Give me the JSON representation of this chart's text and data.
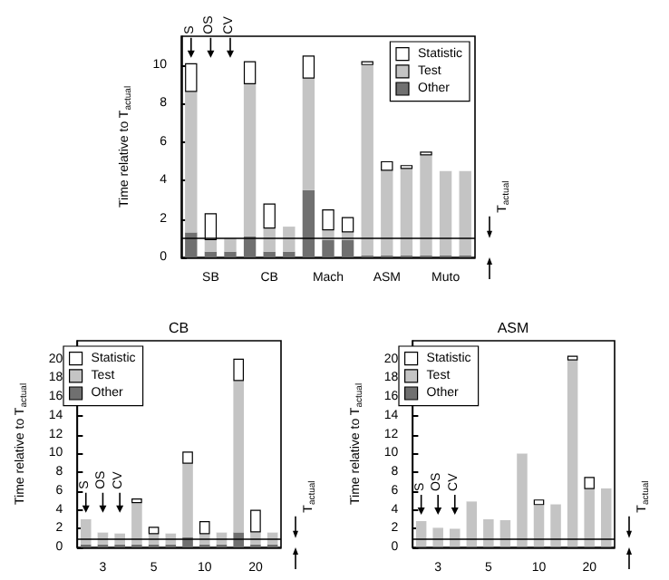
{
  "chart_data": [
    {
      "type": "bar",
      "stacked": true,
      "ylabel": "Time relative to T$_{actual}$",
      "categories": [
        null,
        "SB",
        null,
        null,
        "CB",
        null,
        null,
        "Mach",
        null,
        null,
        "ASM",
        null,
        null,
        "Muto",
        null
      ],
      "ylim": [
        0,
        11.5
      ],
      "yticks": [
        0,
        2,
        4,
        6,
        8,
        10
      ],
      "legend": "top right",
      "grid": false,
      "series": [
        {
          "name": "Other",
          "color": "#707070",
          "values": [
            1.3,
            0.3,
            0.3,
            1.1,
            0.3,
            0.3,
            3.5,
            0.9,
            0.9,
            0.1,
            0.1,
            0.1,
            0.1,
            0.1,
            0.1
          ]
        },
        {
          "name": "Test",
          "color": "#c4c4c4",
          "values": [
            7.3,
            0.6,
            0.7,
            7.9,
            1.2,
            1.3,
            5.8,
            0.5,
            0.4,
            9.9,
            4.4,
            4.5,
            5.2,
            4.4,
            4.4
          ]
        },
        {
          "name": "Statistic",
          "color": "#ffffff",
          "values": [
            1.5,
            1.4,
            0,
            1.2,
            1.3,
            0.1,
            1.2,
            1.1,
            0.8,
            0.2,
            0.5,
            0.2,
            0.2,
            0.1,
            0.1
          ]
        }
      ],
      "ref_lines": [
        {
          "axis": "y",
          "value": 1,
          "label": "T$_{actual}$"
        }
      ],
      "annotations": [
        "S",
        "OS",
        "CV"
      ]
    },
    {
      "type": "bar",
      "stacked": true,
      "title": "CB",
      "ylabel": "Time relative to T$_{actual}$",
      "categories": [
        null,
        "3",
        null,
        null,
        "5",
        null,
        null,
        "10",
        null,
        null,
        "20",
        null
      ],
      "ylim": [
        0,
        22
      ],
      "yticks": [
        0,
        2,
        4,
        6,
        8,
        10,
        12,
        14,
        16,
        18,
        20
      ],
      "legend": "top left",
      "grid": false,
      "series": [
        {
          "name": "Other",
          "color": "#707070",
          "values": [
            0.3,
            0.3,
            0.3,
            0.3,
            0.3,
            0.3,
            1.1,
            0.3,
            0.3,
            1.6,
            0.3,
            0.3
          ]
        },
        {
          "name": "Test",
          "color": "#c4c4c4",
          "values": [
            2.7,
            1.3,
            1.2,
            4.4,
            1.1,
            1.2,
            7.8,
            1.1,
            1.3,
            16.1,
            1.3,
            1.3
          ]
        },
        {
          "name": "Statistic",
          "color": "#ffffff",
          "values": [
            0.1,
            0.2,
            0.1,
            0.5,
            0.8,
            0.1,
            1.3,
            1.4,
            0.2,
            2.4,
            2.4,
            0.2
          ]
        }
      ],
      "ref_lines": [
        {
          "axis": "y",
          "value": 1,
          "label": "T$_{actual}$"
        }
      ],
      "annotations": [
        "S",
        "OS",
        "CV"
      ]
    },
    {
      "type": "bar",
      "stacked": true,
      "title": "ASM",
      "ylabel": "Time relative to T$_{actual}$",
      "categories": [
        null,
        "3",
        null,
        null,
        "5",
        null,
        null,
        "10",
        null,
        null,
        "20",
        null
      ],
      "ylim": [
        0,
        22
      ],
      "yticks": [
        0,
        2,
        4,
        6,
        8,
        10,
        12,
        14,
        16,
        18,
        20
      ],
      "legend": "top left",
      "grid": false,
      "series": [
        {
          "name": "Other",
          "color": "#707070",
          "values": [
            0.1,
            0.1,
            0.1,
            0.1,
            0.1,
            0.1,
            0.1,
            0.1,
            0.1,
            0.1,
            0.1,
            0.1
          ]
        },
        {
          "name": "Test",
          "color": "#c4c4c4",
          "values": [
            2.7,
            2.0,
            1.9,
            4.8,
            2.9,
            2.8,
            9.9,
            4.4,
            4.5,
            19.8,
            6.1,
            6.2
          ]
        },
        {
          "name": "Statistic",
          "color": "#ffffff",
          "values": [
            0.1,
            0.1,
            0.1,
            0.1,
            0.1,
            0.1,
            0.2,
            0.6,
            0.1,
            0.5,
            1.3,
            0.1
          ]
        }
      ],
      "ref_lines": [
        {
          "axis": "y",
          "value": 1,
          "label": "T$_{actual}$"
        }
      ],
      "annotations": [
        "S",
        "OS",
        "CV"
      ]
    }
  ]
}
